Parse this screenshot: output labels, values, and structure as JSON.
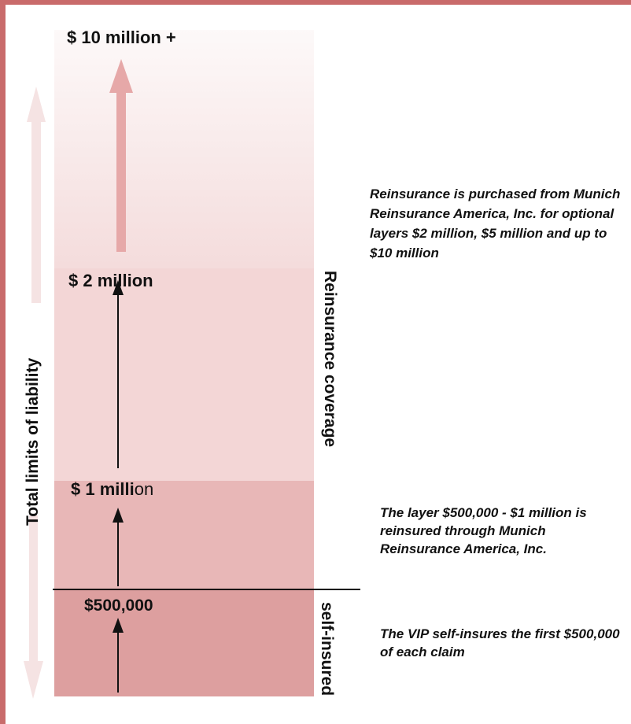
{
  "levels": {
    "top": "$ 10 million +",
    "reinsurance_base": "$ 2 million",
    "mid_bold": "$ 1 milli",
    "mid_regular": "on",
    "retention": "$500,000"
  },
  "side_labels": {
    "total": "Total limits of liability",
    "reinsurance": "Reinsurance coverage",
    "self_insured": "self-insured"
  },
  "notes": {
    "reinsurance": "Reinsurance is purchased from Munich Reinsurance America, Inc. for optional layers $2 million, $5 million and up to $10 million",
    "mid_layer": "The layer $500,000 - $1 million is reinsured through Munich Reinsurance America, Inc.",
    "self_insured": "The VIP self-insures the first $500,000 of each claim"
  },
  "colors": {
    "frame": "#c96b6b",
    "layer_top": "#f3d8d8",
    "layer_reinsurance": "#f3d6d6",
    "layer_mid": "#e8b7b7",
    "layer_self": "#dd9f9f",
    "arrow_faded": "#e6a8a8",
    "arrow_light": "#f5e3e3"
  }
}
